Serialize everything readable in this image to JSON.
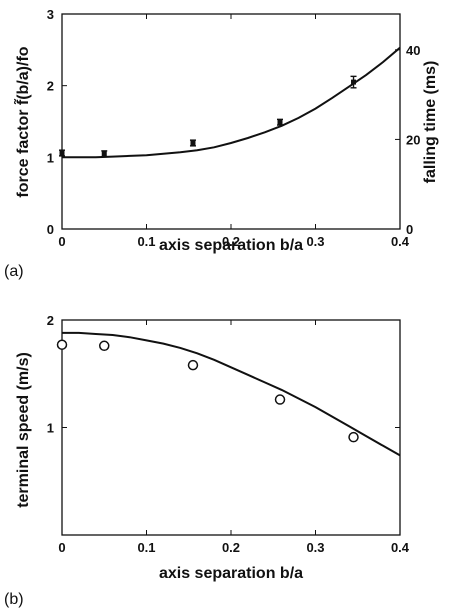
{
  "chart_data": [
    {
      "type": "line",
      "panel_label": "(a)",
      "xlabel": "axis separation b/a",
      "ylabel": "force factor f̃(b/a)/fo",
      "y2label": "falling time (ms)",
      "xlim": [
        0,
        0.4
      ],
      "ylim": [
        0,
        3
      ],
      "y2lim": [
        0,
        48
      ],
      "xticks": [
        "0",
        "0.1",
        "0.2",
        "0.3",
        "0.4"
      ],
      "yticks": [
        "0",
        "1",
        "2",
        "3"
      ],
      "y2ticks": [
        "0",
        "20",
        "40"
      ],
      "grid": false,
      "series": [
        {
          "kind": "line",
          "x": [
            0,
            0.02,
            0.04,
            0.06,
            0.08,
            0.1,
            0.12,
            0.14,
            0.16,
            0.18,
            0.2,
            0.22,
            0.24,
            0.26,
            0.28,
            0.3,
            0.32,
            0.34,
            0.36,
            0.38,
            0.4
          ],
          "y": [
            1.0,
            1.0,
            1.0,
            1.01,
            1.02,
            1.03,
            1.05,
            1.07,
            1.1,
            1.14,
            1.2,
            1.27,
            1.35,
            1.44,
            1.55,
            1.68,
            1.83,
            1.99,
            2.15,
            2.33,
            2.53
          ]
        },
        {
          "kind": "errorbar",
          "x": [
            0,
            0.05,
            0.155,
            0.258,
            0.345
          ],
          "y": [
            1.06,
            1.05,
            1.2,
            1.49,
            2.05
          ],
          "yerr": [
            0.04,
            0.04,
            0.04,
            0.04,
            0.08
          ]
        }
      ]
    },
    {
      "type": "line",
      "panel_label": "(b)",
      "xlabel": "axis separation b/a",
      "ylabel": "terminal speed (m/s)",
      "xlim": [
        0,
        0.4
      ],
      "ylim": [
        0,
        2
      ],
      "xticks": [
        "0",
        "0.1",
        "0.2",
        "0.3",
        "0.4"
      ],
      "yticks": [
        "1",
        "2"
      ],
      "grid": false,
      "series": [
        {
          "kind": "line",
          "x": [
            0,
            0.02,
            0.04,
            0.06,
            0.08,
            0.1,
            0.12,
            0.14,
            0.16,
            0.18,
            0.2,
            0.22,
            0.24,
            0.26,
            0.28,
            0.3,
            0.32,
            0.34,
            0.36,
            0.38,
            0.4
          ],
          "y": [
            1.88,
            1.88,
            1.87,
            1.86,
            1.84,
            1.81,
            1.78,
            1.74,
            1.69,
            1.63,
            1.56,
            1.49,
            1.42,
            1.35,
            1.27,
            1.19,
            1.1,
            1.01,
            0.92,
            0.83,
            0.74
          ]
        },
        {
          "kind": "marker",
          "marker": "circle",
          "x": [
            0,
            0.05,
            0.155,
            0.258,
            0.345
          ],
          "y": [
            1.77,
            1.76,
            1.58,
            1.26,
            0.91
          ]
        }
      ]
    }
  ]
}
